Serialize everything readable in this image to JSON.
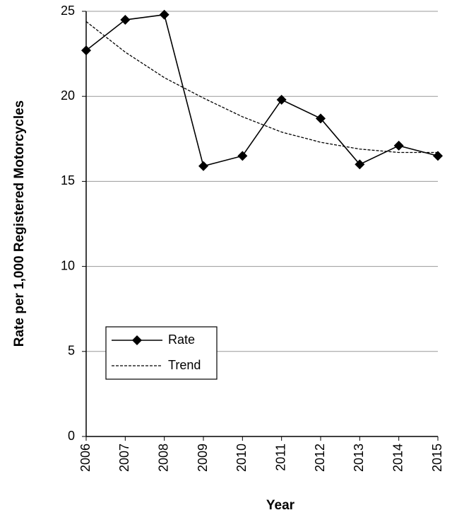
{
  "chart_data": {
    "type": "line",
    "y_label": "Rate per 1,000 Registered Motorcycles",
    "x_label": "Year",
    "x": [
      2006,
      2007,
      2008,
      2009,
      2010,
      2011,
      2012,
      2013,
      2014,
      2015
    ],
    "series": [
      {
        "name": "Rate",
        "color": "#000000",
        "dashed": false,
        "marker": true,
        "values": [
          22.7,
          24.5,
          24.8,
          15.9,
          16.5,
          19.8,
          18.7,
          16.0,
          17.1,
          16.5
        ]
      },
      {
        "name": "Trend",
        "color": "#000000",
        "dashed": true,
        "marker": false,
        "values": [
          24.4,
          22.6,
          21.1,
          19.9,
          18.8,
          17.9,
          17.3,
          16.9,
          16.7,
          16.7
        ]
      }
    ],
    "xlim": [
      2006,
      2015
    ],
    "xticks": [
      2006,
      2007,
      2008,
      2009,
      2010,
      2011,
      2012,
      2013,
      2014,
      2015
    ],
    "ylim": [
      0,
      25
    ],
    "yticks": [
      0,
      5,
      10,
      15,
      20,
      25
    ],
    "grid": true,
    "legend": "left"
  }
}
